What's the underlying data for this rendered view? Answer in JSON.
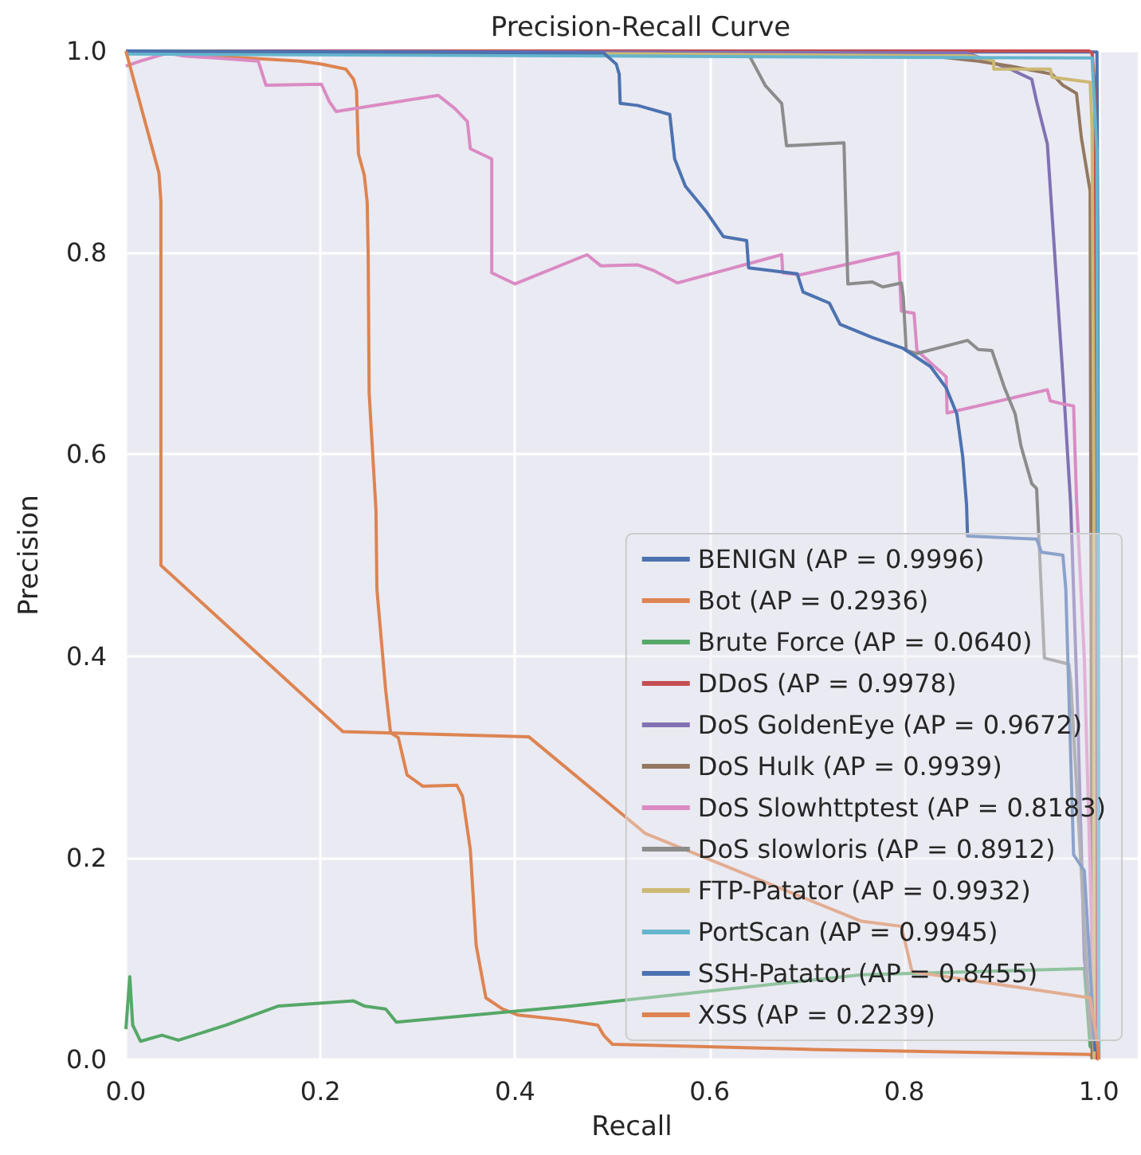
{
  "chart_data": {
    "type": "line",
    "title": "Precision-Recall Curve",
    "xlabel": "Recall",
    "ylabel": "Precision",
    "xlim": [
      0,
      1.04
    ],
    "ylim": [
      0,
      1
    ],
    "xticks": [
      {
        "value": 0,
        "label": "0.0"
      },
      0.2,
      0.4,
      0.6,
      0.8,
      {
        "value": 1,
        "label": "1.0"
      }
    ],
    "yticks": [
      {
        "value": 0,
        "label": "0.0"
      },
      0.2,
      0.4,
      0.6,
      0.8,
      {
        "value": 1,
        "label": "1.0"
      }
    ],
    "grid": true,
    "legend": "bottom right",
    "series": [
      {
        "name": "BENIGN (AP = 0.9996)",
        "color": "#4c72b0",
        "x": [
          0,
          0.5,
          0.998,
          0.999,
          1.0
        ],
        "values": [
          1,
          0.999,
          0.999,
          0.8,
          0.0
        ]
      },
      {
        "name": "Bot (AP = 0.2936)",
        "color": "#dd8452",
        "x": [
          0,
          0.179,
          0.201,
          0.226,
          0.234,
          0.237,
          0.239,
          0.245,
          0.248,
          0.249,
          0.25,
          0.257,
          0.258,
          0.267,
          0.272,
          0.28,
          0.289,
          0.305,
          0.34,
          0.346,
          0.354,
          0.36,
          0.37,
          0.387,
          0.403,
          0.452,
          0.485,
          0.491,
          0.5,
          0.7,
          0.99,
          1.0
        ],
        "values": [
          1,
          0.99,
          0.987,
          0.982,
          0.972,
          0.961,
          0.898,
          0.877,
          0.85,
          0.798,
          0.661,
          0.545,
          0.466,
          0.366,
          0.324,
          0.319,
          0.282,
          0.271,
          0.272,
          0.261,
          0.208,
          0.113,
          0.061,
          0.05,
          0.044,
          0.039,
          0.034,
          0.024,
          0.015,
          0.01,
          0.005,
          0.0
        ]
      },
      {
        "name": "Brute Force (AP = 0.0640)",
        "color": "#55a868",
        "x": [
          0,
          0.004,
          0.007,
          0.015,
          0.037,
          0.054,
          0.103,
          0.157,
          0.234,
          0.245,
          0.267,
          0.278,
          0.425,
          0.458,
          0.756,
          0.985,
          0.991,
          0.996
        ],
        "values": [
          0.03,
          0.082,
          0.034,
          0.018,
          0.024,
          0.019,
          0.034,
          0.053,
          0.058,
          0.053,
          0.05,
          0.037,
          0.05,
          0.053,
          0.084,
          0.09,
          0.013,
          0.008
        ]
      },
      {
        "name": "DDoS (AP = 0.9978)",
        "color": "#c44e52",
        "x": [
          0,
          0.99,
          0.993,
          0.996,
          0.998
        ],
        "values": [
          1,
          1,
          0.998,
          0.961,
          0.0
        ]
      },
      {
        "name": "DoS GoldenEye (AP = 0.9672)",
        "color": "#8172b3",
        "x": [
          0,
          0.865,
          0.909,
          0.931,
          0.936,
          0.947,
          0.963,
          0.971,
          0.978,
          0.985,
          0.996
        ],
        "values": [
          1,
          0.998,
          0.982,
          0.972,
          0.95,
          0.908,
          0.677,
          0.55,
          0.35,
          0.1,
          0.008
        ]
      },
      {
        "name": "DoS Hulk (AP = 0.9939)",
        "color": "#937860",
        "x": [
          0,
          0.827,
          0.876,
          0.909,
          0.952,
          0.963,
          0.977,
          0.982,
          0.991,
          0.993
        ],
        "values": [
          1,
          0.995,
          0.99,
          0.985,
          0.977,
          0.966,
          0.958,
          0.914,
          0.861,
          0.0
        ]
      },
      {
        "name": "DoS Slowhttptest (AP = 0.8183)",
        "color": "#da8bc3",
        "x": [
          0,
          0.015,
          0.043,
          0.059,
          0.092,
          0.136,
          0.144,
          0.201,
          0.209,
          0.216,
          0.321,
          0.338,
          0.351,
          0.354,
          0.376,
          0.376,
          0.4,
          0.474,
          0.488,
          0.526,
          0.543,
          0.567,
          0.674,
          0.675,
          0.693,
          0.794,
          0.797,
          0.81,
          0.813,
          0.843,
          0.844,
          0.947,
          0.95,
          0.963,
          0.974,
          0.977,
          0.985,
          0.996
        ],
        "values": [
          0.985,
          0.99,
          0.998,
          0.995,
          0.993,
          0.99,
          0.966,
          0.967,
          0.95,
          0.94,
          0.956,
          0.943,
          0.93,
          0.903,
          0.893,
          0.78,
          0.769,
          0.798,
          0.787,
          0.788,
          0.782,
          0.77,
          0.798,
          0.78,
          0.778,
          0.8,
          0.742,
          0.74,
          0.703,
          0.677,
          0.641,
          0.664,
          0.653,
          0.65,
          0.648,
          0.556,
          0.398,
          0.008
        ]
      },
      {
        "name": "DoS slowloris (AP = 0.8912)",
        "color": "#8c8c8c",
        "x": [
          0,
          0.641,
          0.657,
          0.674,
          0.679,
          0.738,
          0.742,
          0.767,
          0.778,
          0.797,
          0.799,
          0.802,
          0.813,
          0.865,
          0.876,
          0.89,
          0.903,
          0.914,
          0.92,
          0.931,
          0.936,
          0.944,
          0.969,
          0.971,
          0.991,
          0.996
        ],
        "values": [
          1,
          0.995,
          0.966,
          0.948,
          0.906,
          0.909,
          0.769,
          0.771,
          0.766,
          0.77,
          0.756,
          0.703,
          0.7,
          0.713,
          0.704,
          0.703,
          0.666,
          0.64,
          0.608,
          0.571,
          0.566,
          0.398,
          0.392,
          0.376,
          0.029,
          0.008
        ]
      },
      {
        "name": "FTP-Patator (AP = 0.9932)",
        "color": "#ccb974",
        "x": [
          0,
          0.87,
          0.892,
          0.892,
          0.95,
          0.952,
          0.991,
          0.993,
          0.995,
          0.995
        ],
        "values": [
          1,
          0.995,
          0.99,
          0.982,
          0.982,
          0.974,
          0.969,
          0.924,
          0.556,
          0.0
        ]
      },
      {
        "name": "PortScan (AP = 0.9945)",
        "color": "#64b5cd",
        "x": [
          0,
          0.993,
          0.998,
          1.0
        ],
        "values": [
          0.997,
          0.993,
          0.9,
          0.0
        ]
      },
      {
        "name": "SSH-Patator (AP = 0.8455)",
        "color": "#4c72b0",
        "x": [
          0,
          0.491,
          0.504,
          0.507,
          0.508,
          0.526,
          0.559,
          0.564,
          0.575,
          0.597,
          0.614,
          0.638,
          0.64,
          0.69,
          0.696,
          0.723,
          0.734,
          0.767,
          0.799,
          0.827,
          0.843,
          0.854,
          0.86,
          0.864,
          0.865,
          0.936,
          0.941,
          0.963,
          0.966,
          0.974,
          0.985,
          0.996
        ],
        "values": [
          1,
          0.998,
          0.987,
          0.977,
          0.948,
          0.946,
          0.937,
          0.893,
          0.866,
          0.84,
          0.816,
          0.812,
          0.785,
          0.779,
          0.761,
          0.75,
          0.729,
          0.716,
          0.705,
          0.687,
          0.666,
          0.64,
          0.598,
          0.55,
          0.519,
          0.516,
          0.503,
          0.5,
          0.466,
          0.203,
          0.187,
          0.008
        ]
      },
      {
        "name": "XSS (AP = 0.2239)",
        "color": "#dd8452",
        "x": [
          0,
          0.034,
          0.036,
          0.036,
          0.223,
          0.414,
          0.534,
          0.756,
          0.797,
          0.808,
          0.991,
          0.999,
          1.0
        ],
        "values": [
          1,
          0.879,
          0.85,
          0.49,
          0.325,
          0.32,
          0.224,
          0.137,
          0.132,
          0.087,
          0.061,
          0.013,
          0.0
        ]
      }
    ]
  }
}
